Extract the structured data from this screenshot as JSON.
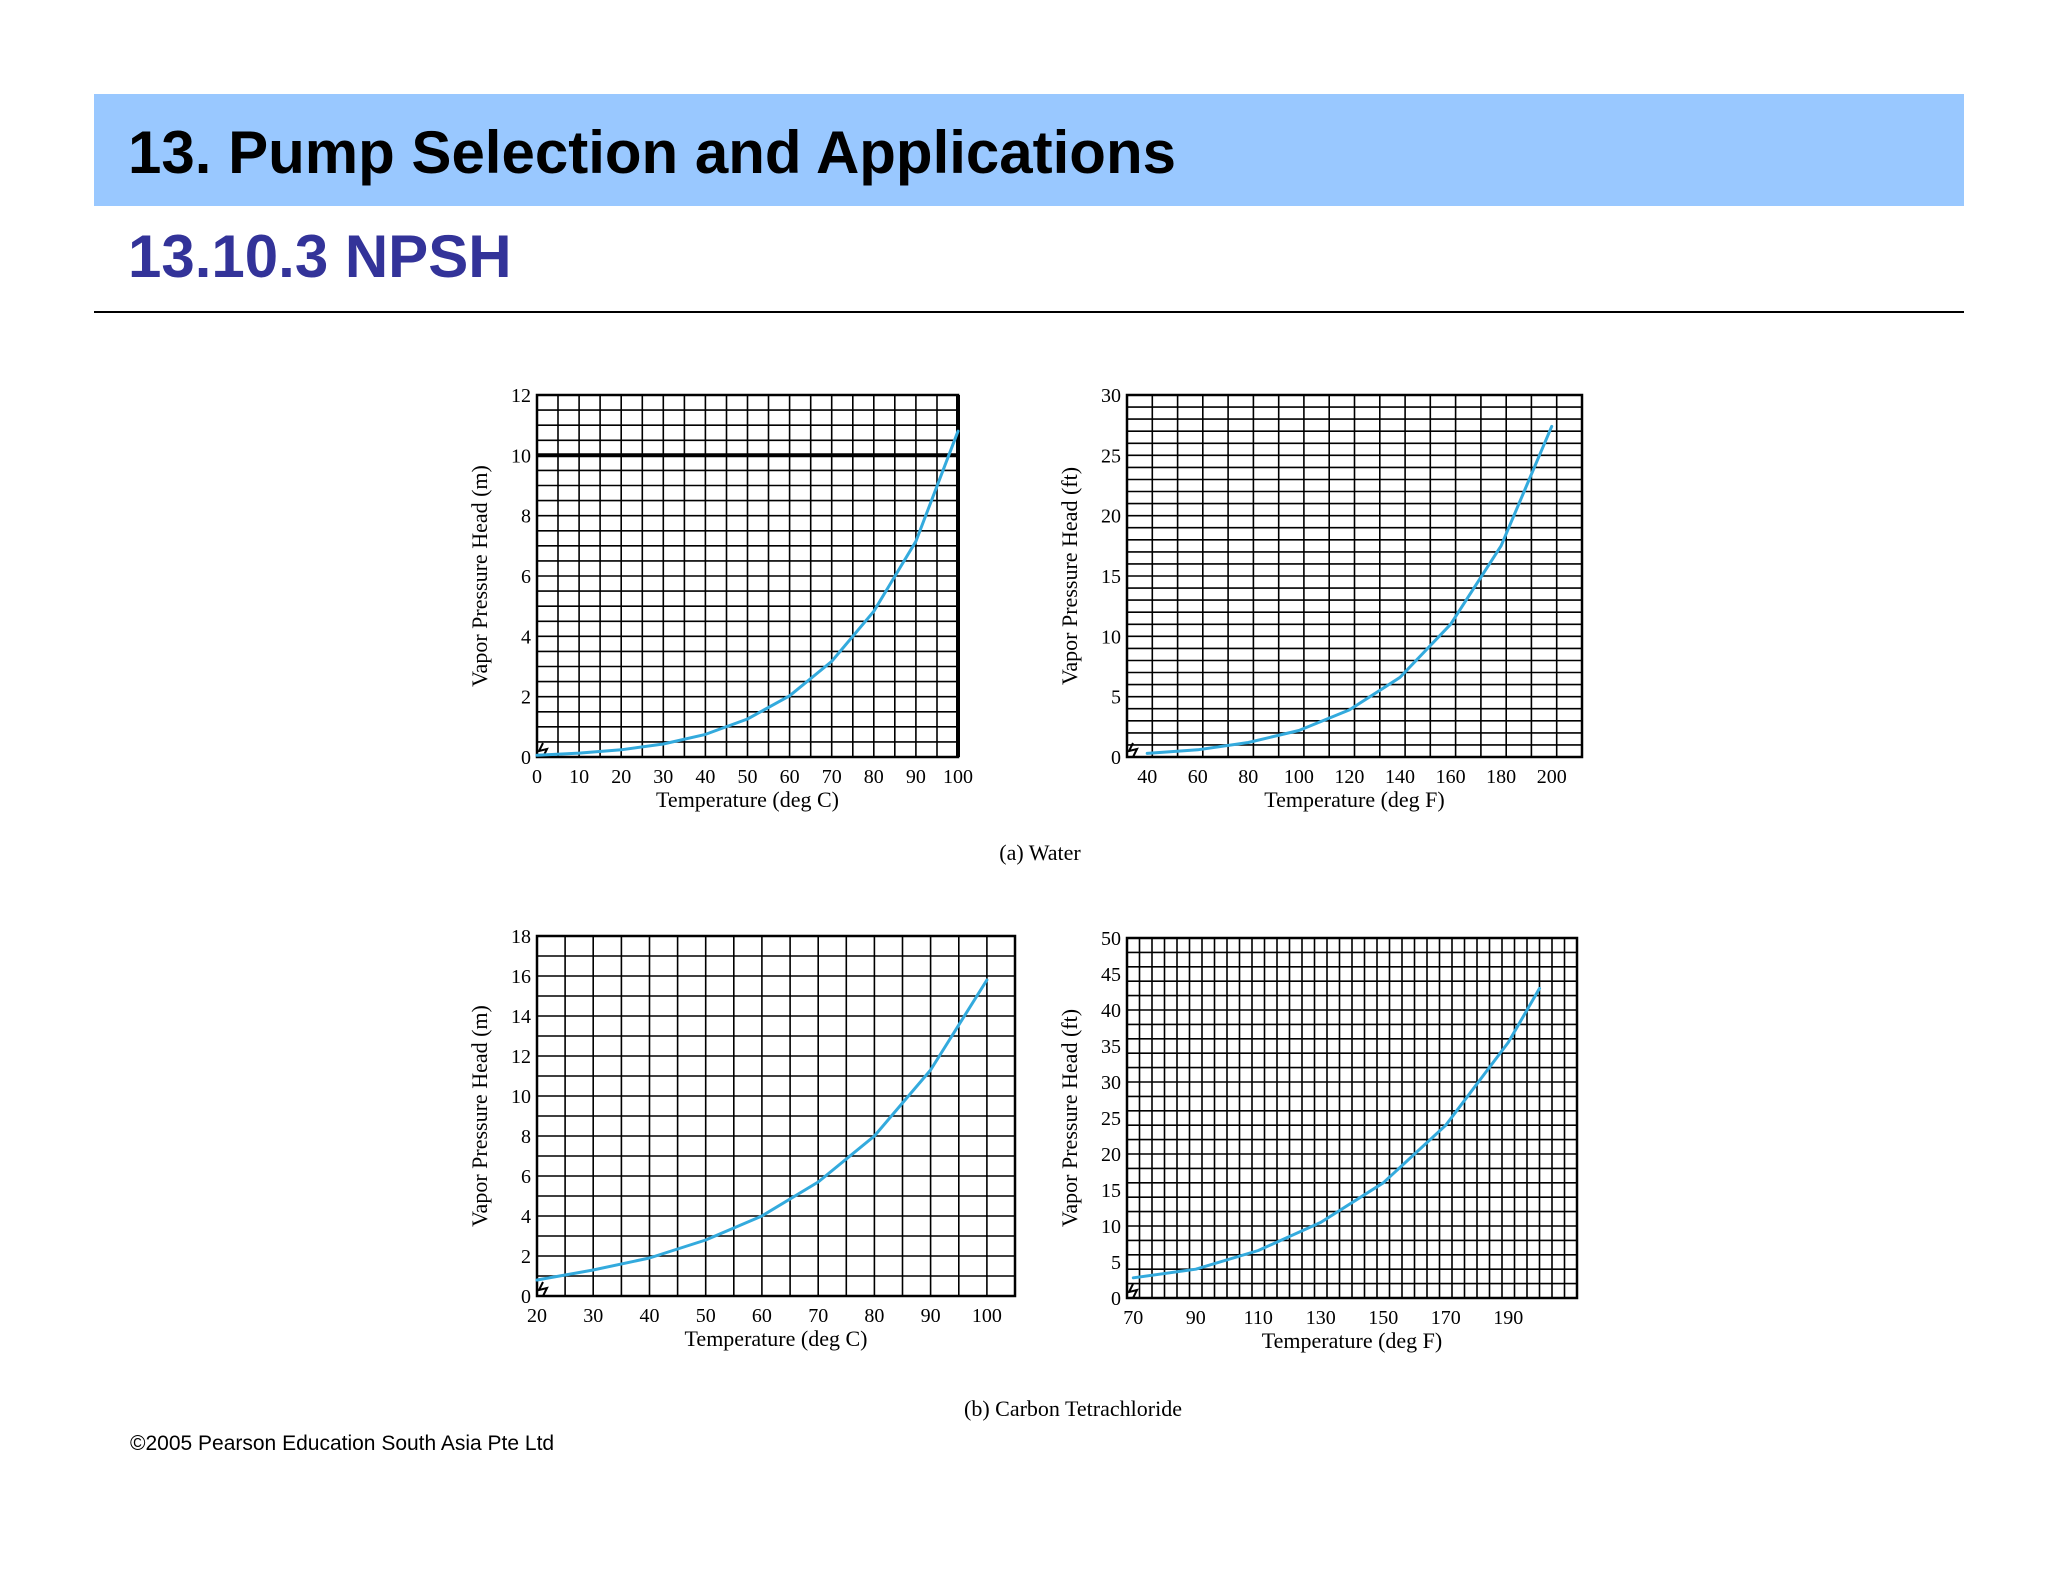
{
  "slide": {
    "title": "13. Pump Selection and Applications",
    "subtitle": "13.10.3 NPSH",
    "footer": "©2005 Pearson Education South Asia Pte Ltd"
  },
  "figure": {
    "caption_a": "(a) Water",
    "caption_b": "(b) Carbon Tetrachloride"
  },
  "colors": {
    "band": "#99c8ff",
    "subtitle": "#333399",
    "curve": "#33aadd"
  },
  "chart_data": [
    {
      "type": "line",
      "group": "(a) Water",
      "xlabel": "Temperature (deg C)",
      "ylabel": "Vapor Pressure Head (m)",
      "xlim": [
        0,
        100
      ],
      "ylim": [
        0,
        12
      ],
      "xticks": [
        0,
        10,
        20,
        30,
        40,
        50,
        60,
        70,
        80,
        90,
        100
      ],
      "yticks": [
        0,
        2,
        4,
        6,
        8,
        10,
        12
      ],
      "x_minor": 5,
      "y_minor": 0.5,
      "x_major": [
        100
      ],
      "y_major": [
        10
      ],
      "grid": true,
      "series": [
        {
          "x": [
            0,
            10,
            20,
            30,
            40,
            50,
            60,
            70,
            80,
            90,
            100
          ],
          "y": [
            0.06,
            0.13,
            0.24,
            0.43,
            0.75,
            1.26,
            2.03,
            3.17,
            4.83,
            7.15,
            10.8
          ]
        }
      ]
    },
    {
      "type": "line",
      "group": "(a) Water",
      "xlabel": "Temperature (deg F)",
      "ylabel": "Vapor Pressure Head (ft)",
      "xlim": [
        32,
        212
      ],
      "ylim": [
        0,
        30
      ],
      "xticks": [
        40,
        60,
        80,
        100,
        120,
        140,
        160,
        180,
        200
      ],
      "yticks": [
        0,
        5,
        10,
        15,
        20,
        25,
        30
      ],
      "x_minor": 10,
      "y_minor": 1,
      "x_major": [],
      "y_major": [],
      "grid": true,
      "series": [
        {
          "x": [
            40,
            60,
            80,
            100,
            120,
            140,
            160,
            180,
            200
          ],
          "y": [
            0.3,
            0.6,
            1.2,
            2.2,
            3.9,
            6.6,
            11.0,
            17.5,
            27.4
          ]
        }
      ]
    },
    {
      "type": "line",
      "group": "(b) Carbon Tetrachloride",
      "xlabel": "Temperature (deg C)",
      "ylabel": "Vapor Pressure Head (m)",
      "xlim": [
        20,
        105
      ],
      "ylim": [
        0,
        18
      ],
      "xticks": [
        20,
        30,
        40,
        50,
        60,
        70,
        80,
        90,
        100
      ],
      "yticks": [
        0,
        2,
        4,
        6,
        8,
        10,
        12,
        14,
        16,
        18
      ],
      "x_minor": 5,
      "y_minor": 1,
      "x_major": [],
      "y_major": [],
      "grid": true,
      "series": [
        {
          "x": [
            20,
            30,
            40,
            50,
            60,
            70,
            80,
            90,
            100
          ],
          "y": [
            0.8,
            1.3,
            1.9,
            2.8,
            4.0,
            5.7,
            8.0,
            11.3,
            15.8
          ]
        }
      ]
    },
    {
      "type": "line",
      "group": "(b) Carbon Tetrachloride",
      "xlabel": "Temperature (deg F)",
      "ylabel": "Vapor Pressure Head (ft)",
      "xlim": [
        68,
        212
      ],
      "ylim": [
        0,
        50
      ],
      "xticks": [
        70,
        90,
        110,
        130,
        150,
        170,
        190
      ],
      "yticks": [
        0,
        5,
        10,
        15,
        20,
        25,
        30,
        35,
        40,
        45,
        50
      ],
      "x_minor": 4,
      "y_minor": 2,
      "x_major": [],
      "y_major": [],
      "grid": true,
      "series": [
        {
          "x": [
            70,
            90,
            110,
            130,
            150,
            170,
            190,
            200
          ],
          "y": [
            2.8,
            4.0,
            6.6,
            10.5,
            16.0,
            24.0,
            35.5,
            43.0
          ]
        }
      ]
    }
  ]
}
